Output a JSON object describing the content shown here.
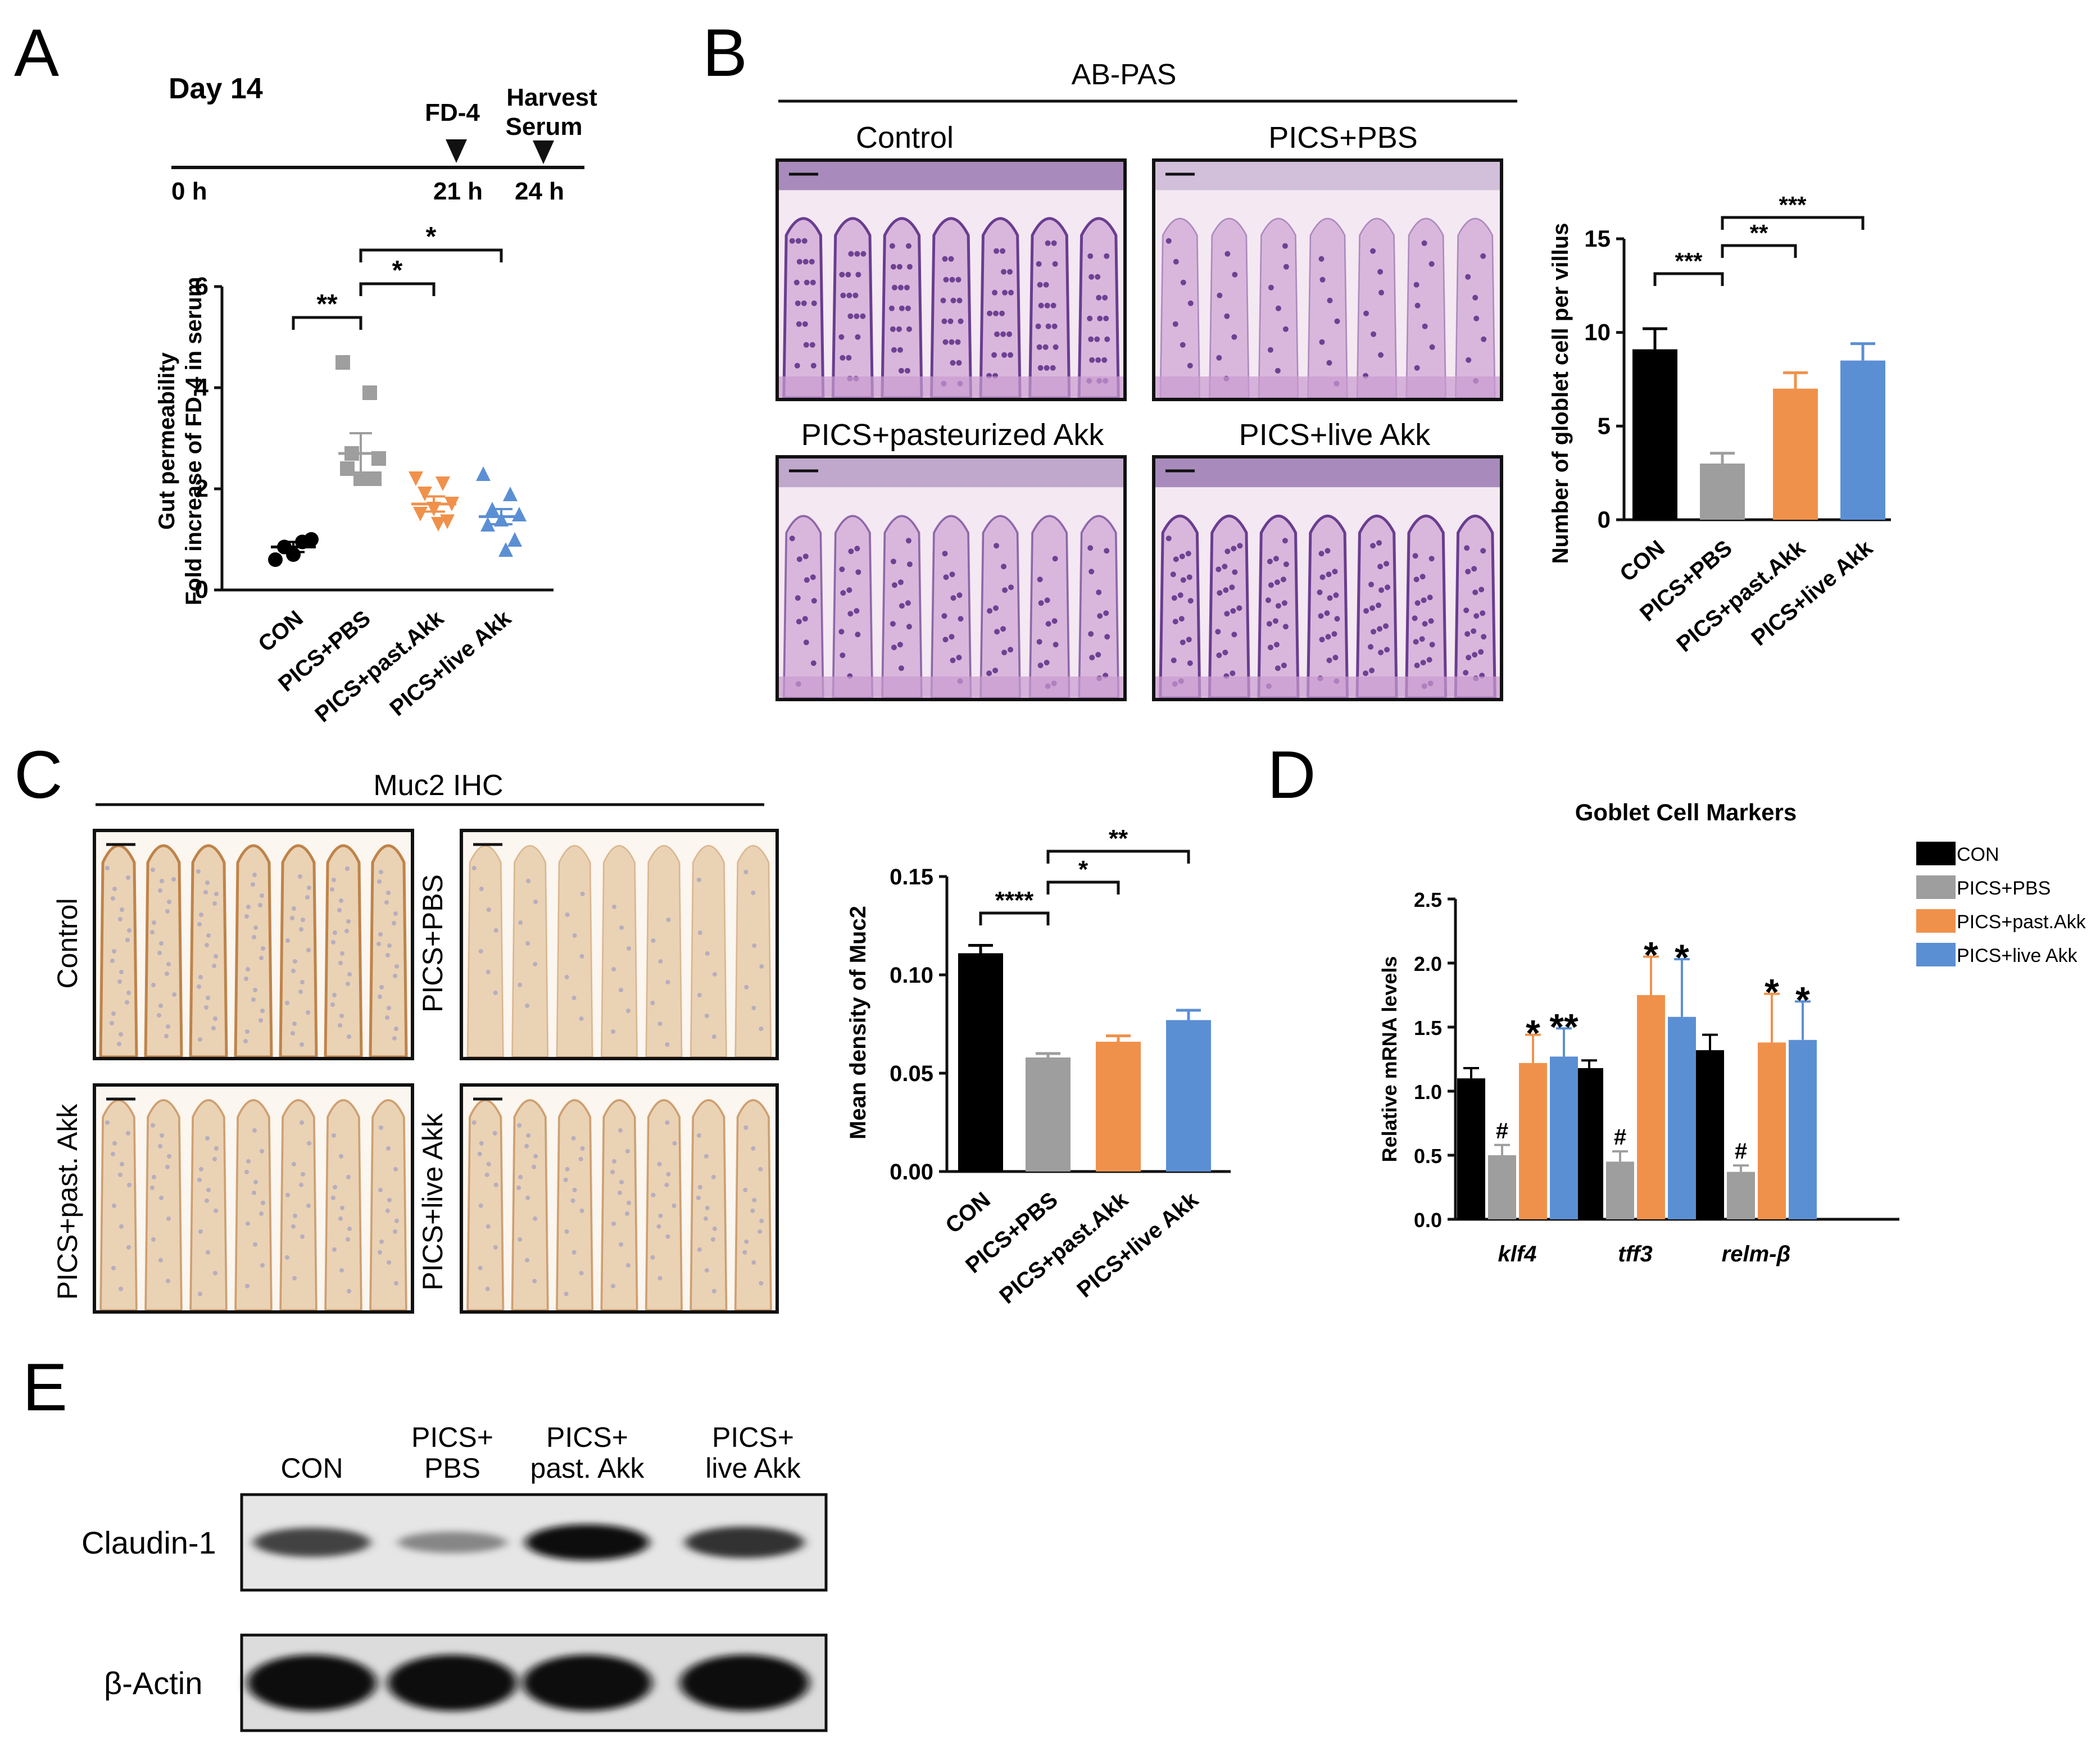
{
  "panel_letters": [
    "A",
    "B",
    "C",
    "D",
    "E"
  ],
  "timeline": {
    "day": "Day 14",
    "events": [
      {
        "label_lines": [
          "FD-4"
        ],
        "time": "21 h"
      },
      {
        "label_lines": [
          "Harvest",
          "Serum"
        ],
        "time": "24 h"
      }
    ],
    "start": "0 h"
  },
  "abpas": {
    "header": "AB-PAS",
    "images": [
      {
        "label": "Control",
        "stain": "dense"
      },
      {
        "label": "PICS+PBS",
        "stain": "pale"
      },
      {
        "label": "PICS+pasteurized Akk",
        "stain": "medium"
      },
      {
        "label": "PICS+live Akk",
        "stain": "dense"
      }
    ]
  },
  "muc2": {
    "header": "Muc2 IHC",
    "images": [
      {
        "label": "Control",
        "stain": "dense"
      },
      {
        "label": "PICS+PBS",
        "stain": "pale"
      },
      {
        "label": "PICS+past. Akk",
        "stain": "medium"
      },
      {
        "label": "PICS+live Akk",
        "stain": "medium"
      }
    ]
  },
  "chart_data": [
    {
      "panel": "A",
      "type": "scatter",
      "ylabel_lines": [
        "Gut permeability",
        "Fold increase of FD-4 in serum"
      ],
      "ylim": [
        0,
        6
      ],
      "yticks": [
        0,
        2,
        4,
        6
      ],
      "categories": [
        "CON",
        "PICS+PBS",
        "PICS+past.Akk",
        "PICS+live Akk"
      ],
      "colors": [
        "#000000",
        "#9e9e9e",
        "#f0914b",
        "#5b8fd4"
      ],
      "markers": [
        "circle",
        "square",
        "triangle-down",
        "triangle-up"
      ],
      "points": [
        [
          0.6,
          0.95,
          0.85,
          1.0,
          0.7
        ],
        [
          4.5,
          3.9,
          2.7,
          2.6,
          2.2,
          2.4,
          2.2
        ],
        [
          2.2,
          2.1,
          1.9,
          1.7,
          1.6,
          1.5,
          1.35,
          1.3
        ],
        [
          2.3,
          1.9,
          1.6,
          1.5,
          1.4,
          1.3,
          1.0,
          0.8
        ]
      ],
      "means": [
        0.85,
        2.7,
        1.7,
        1.45
      ],
      "sems": [
        0.1,
        0.4,
        0.15,
        0.15
      ],
      "significance": [
        {
          "from": 0,
          "to": 1,
          "label": "**"
        },
        {
          "from": 1,
          "to": 2,
          "label": "*"
        },
        {
          "from": 1,
          "to": 3,
          "label": "*"
        }
      ]
    },
    {
      "panel": "B",
      "type": "bar",
      "ylabel": "Number of globlet cell per villus",
      "ylim": [
        0,
        15
      ],
      "yticks": [
        0,
        5,
        10,
        15
      ],
      "categories": [
        "CON",
        "PICS+PBS",
        "PICS+past.Akk",
        "PICS+live Akk"
      ],
      "colors": [
        "#000000",
        "#9e9e9e",
        "#f0914b",
        "#5b8fd4"
      ],
      "values": [
        9.1,
        3.0,
        7.0,
        8.5
      ],
      "errors": [
        1.1,
        0.55,
        0.85,
        0.9
      ],
      "significance": [
        {
          "from": 0,
          "to": 1,
          "label": "***"
        },
        {
          "from": 1,
          "to": 2,
          "label": "**"
        },
        {
          "from": 1,
          "to": 3,
          "label": "***"
        }
      ]
    },
    {
      "panel": "C",
      "type": "bar",
      "ylabel": "Mean density of Muc2",
      "ylim": [
        0,
        0.15
      ],
      "yticks": [
        "0.00",
        "0.05",
        "0.10",
        "0.15"
      ],
      "categories": [
        "CON",
        "PICS+PBS",
        "PICS+past.Akk",
        "PICS+live Akk"
      ],
      "colors": [
        "#000000",
        "#9e9e9e",
        "#f0914b",
        "#5b8fd4"
      ],
      "values": [
        0.111,
        0.058,
        0.066,
        0.077
      ],
      "errors": [
        0.004,
        0.002,
        0.003,
        0.005
      ],
      "significance": [
        {
          "from": 0,
          "to": 1,
          "label": "****"
        },
        {
          "from": 1,
          "to": 2,
          "label": "*"
        },
        {
          "from": 1,
          "to": 3,
          "label": "**"
        }
      ]
    },
    {
      "panel": "D",
      "type": "bar",
      "title": "Goblet Cell Markers",
      "ylabel": "Relative mRNA levels",
      "ylim": [
        0,
        2.5
      ],
      "yticks": [
        "0.0",
        "0.5",
        "1.0",
        "1.5",
        "2.0",
        "2.5"
      ],
      "categories": [
        "klf4",
        "tff3",
        "relm-β"
      ],
      "legend_position": "top-right",
      "series": [
        {
          "name": "CON",
          "color": "#000000",
          "values": [
            1.1,
            1.18,
            1.32
          ],
          "errors": [
            0.08,
            0.06,
            0.12
          ]
        },
        {
          "name": "PICS+PBS",
          "color": "#9e9e9e",
          "values": [
            0.5,
            0.45,
            0.37
          ],
          "errors": [
            0.08,
            0.08,
            0.05
          ]
        },
        {
          "name": "PICS+past.Akk",
          "color": "#f0914b",
          "values": [
            1.22,
            1.75,
            1.38
          ],
          "errors": [
            0.22,
            0.3,
            0.38
          ]
        },
        {
          "name": "PICS+live Akk",
          "color": "#5b8fd4",
          "values": [
            1.27,
            1.58,
            1.4
          ],
          "errors": [
            0.22,
            0.45,
            0.3
          ]
        }
      ],
      "marks": [
        [
          "",
          "#",
          "*",
          "**"
        ],
        [
          "",
          "#",
          "*",
          "*"
        ],
        [
          "",
          "#",
          "*",
          "*"
        ]
      ]
    }
  ],
  "western": {
    "lanes": [
      [
        "CON"
      ],
      [
        "PICS+",
        "PBS"
      ],
      [
        "PICS+",
        "past. Akk"
      ],
      [
        "PICS+",
        "live Akk"
      ]
    ],
    "rows": [
      {
        "label": "Claudin-1",
        "intensity": [
          0.7,
          0.35,
          1.0,
          0.8
        ]
      },
      {
        "label": "β-Actin",
        "intensity": [
          1.0,
          1.0,
          1.0,
          1.0
        ]
      }
    ]
  }
}
